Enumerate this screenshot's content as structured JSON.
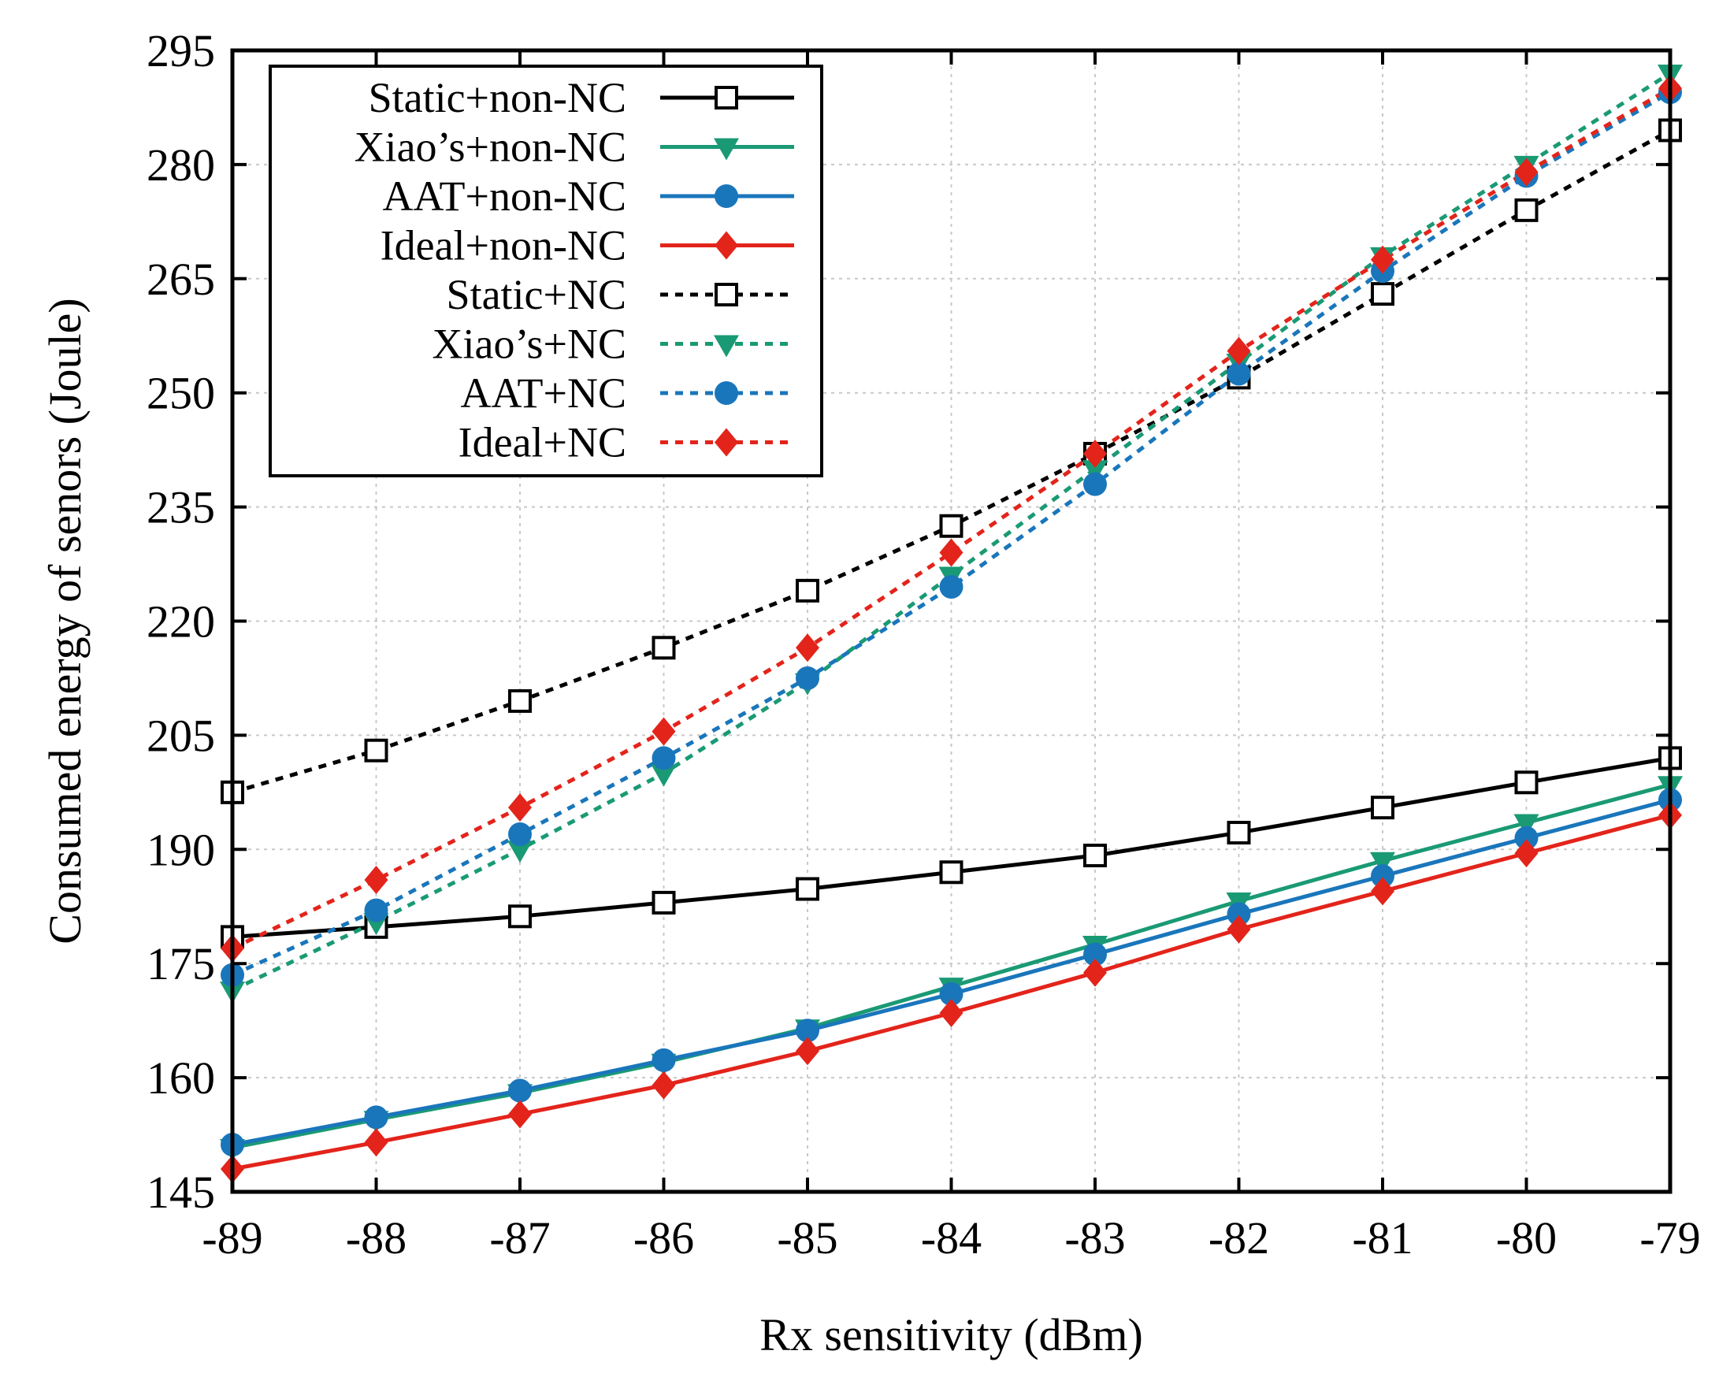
{
  "chart_data": {
    "type": "line",
    "title": "",
    "xlabel": "Rx sensitivity (dBm)",
    "ylabel": "Consumed energy of senors (Joule)",
    "x": [
      -89,
      -88,
      -87,
      -86,
      -85,
      -84,
      -83,
      -82,
      -81,
      -80,
      -79
    ],
    "x_tick_labels": [
      "-89",
      "-88",
      "-87",
      "-86",
      "-85",
      "-84",
      "-83",
      "-82",
      "-81",
      "-80",
      "-79"
    ],
    "xlim": [
      -89,
      -79
    ],
    "ylim": [
      145,
      295
    ],
    "y_ticks": [
      145,
      160,
      175,
      190,
      205,
      220,
      235,
      250,
      265,
      280,
      295
    ],
    "y_tick_labels": [
      "145",
      "160",
      "175",
      "190",
      "205",
      "220",
      "235",
      "250",
      "265",
      "280",
      "295"
    ],
    "grid": true,
    "legend_position": "top-left",
    "series": [
      {
        "name": "Static+non-NC",
        "color": "#000000",
        "dashed": false,
        "marker": "open-square",
        "values": [
          178.5,
          179.8,
          181.2,
          183.0,
          184.8,
          187.0,
          189.2,
          192.2,
          195.5,
          198.8,
          202.0
        ]
      },
      {
        "name": "Xiao’s+non-NC",
        "color": "#1a9a74",
        "dashed": false,
        "marker": "down-triangle",
        "values": [
          150.8,
          154.5,
          158.0,
          162.0,
          166.5,
          172.0,
          177.5,
          183.2,
          188.5,
          193.5,
          198.5
        ]
      },
      {
        "name": "AAT+non-NC",
        "color": "#1a76bb",
        "dashed": false,
        "marker": "circle",
        "values": [
          151.2,
          154.8,
          158.3,
          162.3,
          166.2,
          171.0,
          176.2,
          181.5,
          186.5,
          191.5,
          196.5
        ]
      },
      {
        "name": "Ideal+non-NC",
        "color": "#e3241b",
        "dashed": false,
        "marker": "diamond",
        "values": [
          148.0,
          151.5,
          155.2,
          159.0,
          163.5,
          168.5,
          173.8,
          179.5,
          184.5,
          189.5,
          194.5
        ]
      },
      {
        "name": "Static+NC",
        "color": "#000000",
        "dashed": true,
        "marker": "open-square",
        "values": [
          197.5,
          203.0,
          209.5,
          216.5,
          224.0,
          232.5,
          242.0,
          252.0,
          263.0,
          274.0,
          284.5
        ]
      },
      {
        "name": "Xiao’s+NC",
        "color": "#1a9a74",
        "dashed": true,
        "marker": "down-triangle",
        "values": [
          171.5,
          180.5,
          190.0,
          200.0,
          212.0,
          226.0,
          240.0,
          254.0,
          268.0,
          280.0,
          292.0
        ]
      },
      {
        "name": "AAT+NC",
        "color": "#1a76bb",
        "dashed": true,
        "marker": "circle",
        "values": [
          173.5,
          182.0,
          192.0,
          202.0,
          212.5,
          224.5,
          238.0,
          252.5,
          266.0,
          278.5,
          289.5
        ]
      },
      {
        "name": "Ideal+NC",
        "color": "#e3241b",
        "dashed": true,
        "marker": "diamond",
        "values": [
          177.0,
          186.0,
          195.5,
          205.5,
          216.5,
          229.0,
          242.0,
          255.5,
          267.5,
          279.0,
          290.0
        ]
      }
    ]
  }
}
